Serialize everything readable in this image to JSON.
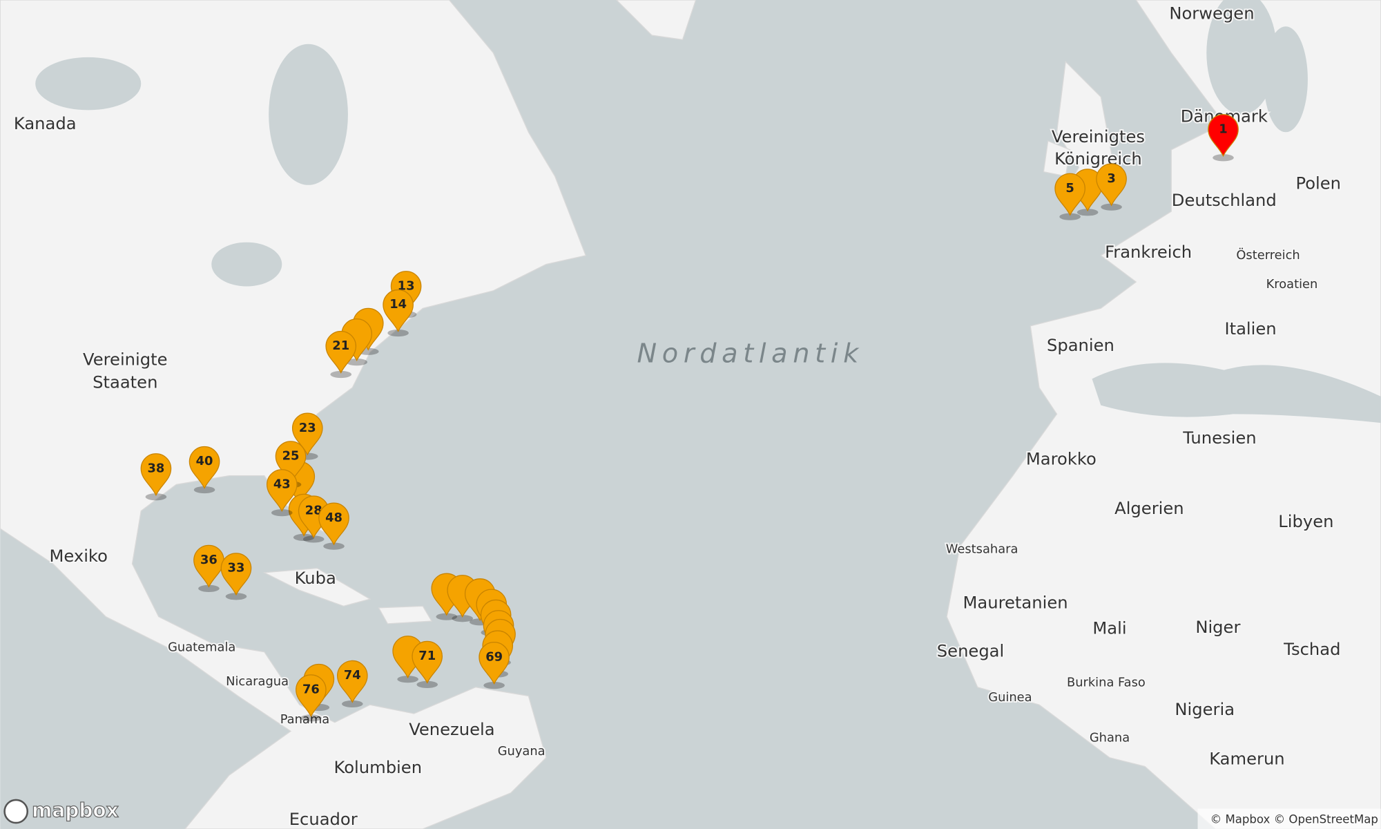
{
  "map": {
    "ocean_label": "Nordatlantik",
    "labels": [
      "Norwegen",
      "Kanada",
      "Dänemark",
      "Vereinigtes",
      "Königreich",
      "Deutschland",
      "Polen",
      "Frankreich",
      "Österreich",
      "Kroatien",
      "Spanien",
      "Italien",
      "Vereinigte",
      "Staaten",
      "Mexiko",
      "Kuba",
      "Guatemala",
      "Nicaragua",
      "Panama",
      "Venezuela",
      "Guyana",
      "Kolumbien",
      "Ecuador",
      "Tunesien",
      "Marokko",
      "Algerien",
      "Libyen",
      "Westsahara",
      "Mauretanien",
      "Mali",
      "Niger",
      "Tschad",
      "Senegal",
      "Burkina Faso",
      "Guinea",
      "Nigeria",
      "Ghana",
      "Kamerun"
    ],
    "markers": [
      {
        "label": "1",
        "color": "#ff0000"
      },
      {
        "label": "3",
        "color": "#f5a300"
      },
      {
        "label": "5",
        "color": "#f5a300"
      },
      {
        "label": "13",
        "color": "#f5a300"
      },
      {
        "label": "14",
        "color": "#f5a300"
      },
      {
        "label": "21",
        "color": "#f5a300"
      },
      {
        "label": "23",
        "color": "#f5a300"
      },
      {
        "label": "25",
        "color": "#f5a300"
      },
      {
        "label": "43",
        "color": "#f5a300"
      },
      {
        "label": "28",
        "color": "#f5a300"
      },
      {
        "label": "48",
        "color": "#f5a300"
      },
      {
        "label": "38",
        "color": "#f5a300"
      },
      {
        "label": "40",
        "color": "#f5a300"
      },
      {
        "label": "36",
        "color": "#f5a300"
      },
      {
        "label": "33",
        "color": "#f5a300"
      },
      {
        "label": "71",
        "color": "#f5a300"
      },
      {
        "label": "69",
        "color": "#f5a300"
      },
      {
        "label": "74",
        "color": "#f5a300"
      },
      {
        "label": "76",
        "color": "#f5a300"
      }
    ],
    "logo": "mapbox",
    "attribution": "© Mapbox © OpenStreetMap"
  }
}
